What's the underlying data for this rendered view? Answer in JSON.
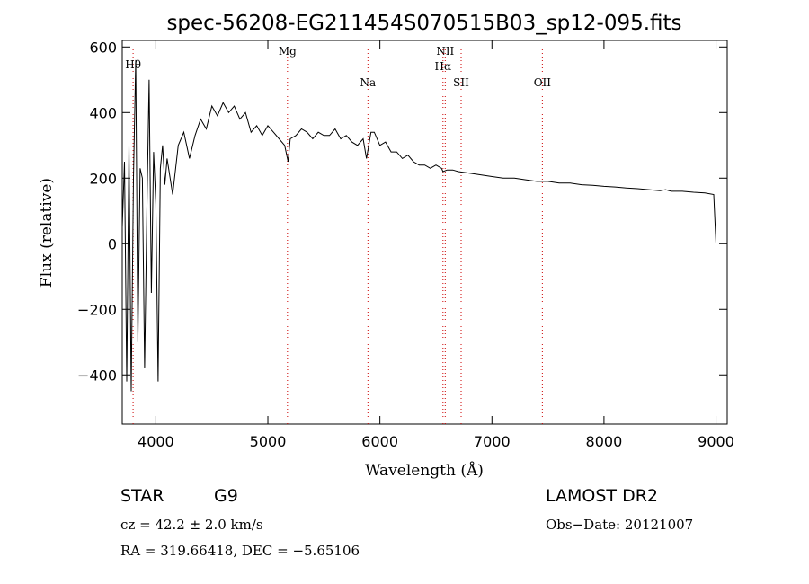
{
  "chart_data": {
    "type": "line",
    "title": "spec-56208-EG211454S070515B03_sp12-095.fits",
    "xlabel": "Wavelength (Å)",
    "ylabel": "Flux (relative)",
    "xlim": [
      3700,
      9100
    ],
    "ylim": [
      -550,
      620
    ],
    "x_ticks": [
      4000,
      5000,
      6000,
      7000,
      8000,
      9000
    ],
    "y_ticks": [
      -400,
      -200,
      0,
      200,
      400,
      600
    ],
    "grid": false,
    "series": [
      {
        "x": [
          3700,
          3720,
          3740,
          3760,
          3780,
          3800,
          3820,
          3840,
          3860,
          3880,
          3900,
          3920,
          3940,
          3960,
          3980,
          4000,
          4020,
          4040,
          4060,
          4080,
          4100,
          4150,
          4200,
          4250,
          4300,
          4350,
          4400,
          4450,
          4500,
          4550,
          4600,
          4650,
          4700,
          4750,
          4800,
          4850,
          4900,
          4950,
          5000,
          5050,
          5100,
          5150,
          5180,
          5200,
          5250,
          5300,
          5350,
          5400,
          5450,
          5500,
          5550,
          5600,
          5650,
          5700,
          5750,
          5800,
          5850,
          5880,
          5900,
          5920,
          5950,
          6000,
          6050,
          6100,
          6150,
          6200,
          6250,
          6300,
          6350,
          6400,
          6450,
          6500,
          6550,
          6563,
          6600,
          6650,
          6700,
          6800,
          6900,
          7000,
          7100,
          7200,
          7300,
          7400,
          7500,
          7600,
          7700,
          7800,
          7900,
          8000,
          8100,
          8200,
          8300,
          8400,
          8500,
          8550,
          8600,
          8650,
          8700,
          8800,
          8900,
          8980,
          9000
        ],
        "y": [
          50,
          250,
          -420,
          300,
          -450,
          200,
          560,
          -300,
          230,
          200,
          -380,
          100,
          500,
          -150,
          280,
          120,
          -420,
          230,
          300,
          180,
          260,
          150,
          300,
          340,
          260,
          330,
          380,
          350,
          420,
          390,
          430,
          400,
          420,
          380,
          400,
          340,
          360,
          330,
          360,
          340,
          320,
          300,
          250,
          320,
          330,
          350,
          340,
          320,
          340,
          330,
          330,
          350,
          320,
          330,
          310,
          300,
          320,
          260,
          300,
          340,
          340,
          300,
          310,
          280,
          280,
          260,
          270,
          250,
          240,
          240,
          230,
          240,
          230,
          220,
          225,
          225,
          220,
          215,
          210,
          205,
          200,
          200,
          195,
          190,
          190,
          185,
          185,
          180,
          178,
          175,
          173,
          170,
          168,
          165,
          162,
          165,
          160,
          160,
          160,
          157,
          155,
          150,
          0
        ]
      }
    ],
    "line_markers": [
      {
        "label": "Hθ",
        "x": 3797
      },
      {
        "label": "Mg",
        "x": 5175
      },
      {
        "label": "Na",
        "x": 5893
      },
      {
        "label": "NII",
        "x": 6583
      },
      {
        "label": "Hα",
        "x": 6563
      },
      {
        "label": "SII",
        "x": 6725
      },
      {
        "label": "OII",
        "x": 7450
      }
    ],
    "marker_color": "#cc0000"
  },
  "info": {
    "object_class": "STAR",
    "subclass": "G9",
    "cz": "cz = 42.2 ± 2.0 km/s",
    "coords": "RA = 319.66418, DEC =  −5.65106",
    "survey": "LAMOST DR2",
    "obs_date": "Obs−Date: 20121007"
  }
}
